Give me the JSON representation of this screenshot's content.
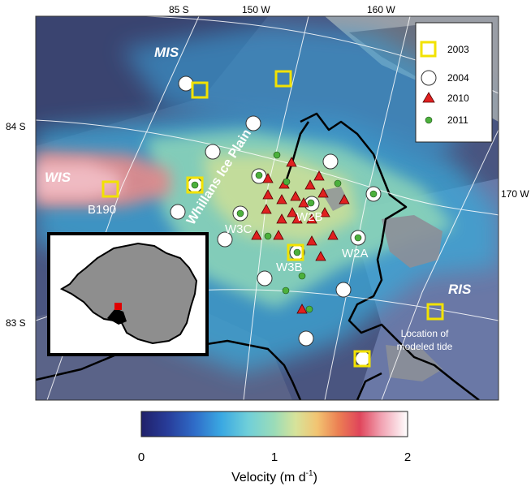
{
  "graticule_labels": {
    "lat_84": "84 S",
    "lat_83": "83 S",
    "lat_85": "85 S",
    "lon_150": "150 W",
    "lon_160": "160 W",
    "lon_170": "170 W"
  },
  "regions": {
    "mis": "MIS",
    "wis": "WIS",
    "ris": "RIS",
    "whillans": "Whillans Ice Plain"
  },
  "station_labels": {
    "b190": "B190",
    "w3c": "W3C",
    "w2b": "W2B",
    "w3b": "W3B",
    "w2a": "W2A"
  },
  "tide_note": {
    "line1": "Location of",
    "line2": "modeled tide"
  },
  "legend": {
    "items": [
      {
        "label": "2003",
        "marker": "yellow-square"
      },
      {
        "label": "2004",
        "marker": "white-circle"
      },
      {
        "label": "2010",
        "marker": "red-triangle"
      },
      {
        "label": "2011",
        "marker": "green-dot"
      }
    ]
  },
  "colorbar": {
    "tick_0": "0",
    "tick_1": "1",
    "tick_2": "2",
    "label_text": "Velocity (m d",
    "label_sup": "-1",
    "label_close": ")",
    "range": [
      0,
      2
    ]
  },
  "colors": {
    "yellow": "#f2e200",
    "red": "#e02020",
    "green": "#4cb03c",
    "grounding_line": "#000000"
  }
}
